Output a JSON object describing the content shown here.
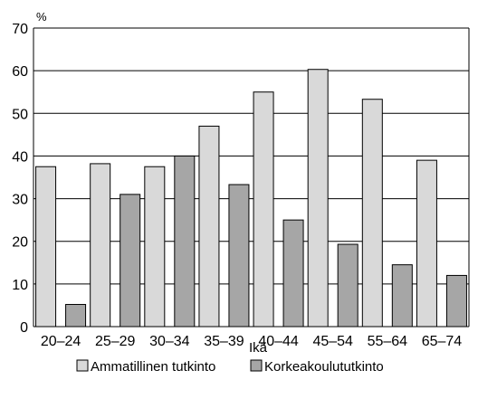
{
  "chart_data": {
    "type": "bar",
    "categories": [
      "20–24",
      "25–29",
      "30–34",
      "35–39",
      "40–44",
      "45–54",
      "55–64",
      "65–74"
    ],
    "series": [
      {
        "name": "Ammatillinen tutkinto",
        "values": [
          37.5,
          38.2,
          37.5,
          47.0,
          55.0,
          60.3,
          53.3,
          39.0
        ],
        "color": "#d9d9d9"
      },
      {
        "name": "Korkeakoulututkinto",
        "values": [
          5.2,
          31.0,
          40.0,
          33.3,
          25.0,
          19.3,
          14.5,
          12.0
        ],
        "color": "#a6a6a6"
      }
    ],
    "y_unit_label": "%",
    "xlabel": "Ikä",
    "ylim": [
      0,
      70
    ],
    "yticks": [
      0,
      10,
      20,
      30,
      40,
      50,
      60,
      70
    ],
    "grid": true,
    "legend_position": "bottom"
  }
}
